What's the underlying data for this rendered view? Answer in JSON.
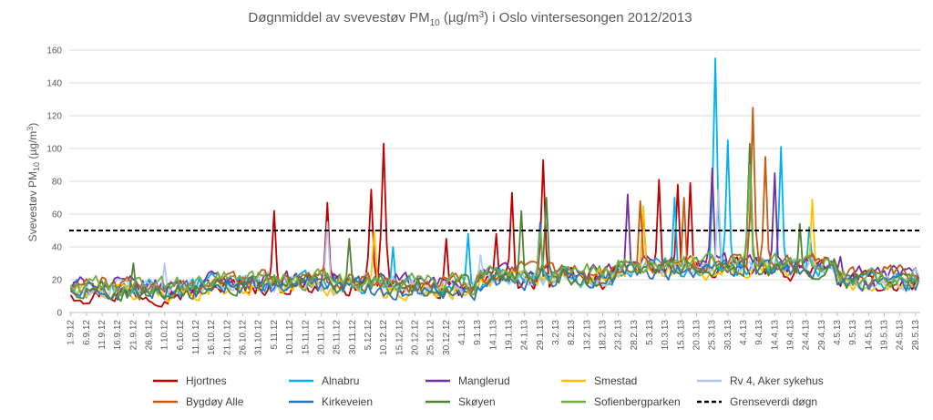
{
  "chart_data": {
    "type": "line",
    "title": "Døgnmiddel av svevestøv PM10 (µg/m³) i Oslo vintersesongen 2012/2013",
    "title_parts": {
      "pre": "Døgnmiddel av svevestøv PM",
      "sub": "10",
      "mid": " (µg/m",
      "sup": "3",
      "post": ") i Oslo vintersesongen 2012/2013"
    },
    "ylabel": "Svevestøv PM10 (µg/m³)",
    "ylabel_parts": {
      "pre": "Svevestøv PM",
      "sub": "10",
      "mid": " (µg/m",
      "sup": "3",
      "post": ")"
    },
    "ylim": [
      0,
      160
    ],
    "yticks": [
      0,
      20,
      40,
      60,
      80,
      100,
      120,
      140,
      160
    ],
    "grid": true,
    "days": 272,
    "x_tick_labels": [
      "1.9.12",
      "6.9.12",
      "11.9.12",
      "16.9.12",
      "21.9.12",
      "26.9.12",
      "1.10.12",
      "6.10.12",
      "11.10.12",
      "16.10.12",
      "21.10.12",
      "26.10.12",
      "31.10.12",
      "5.11.12",
      "10.11.12",
      "15.11.12",
      "20.11.12",
      "25.11.12",
      "30.11.12",
      "5.12.12",
      "10.12.12",
      "15.12.12",
      "20.12.12",
      "25.12.12",
      "30.12.12",
      "4.1.13",
      "9.1.13",
      "14.1.13",
      "19.1.13",
      "24.1.13",
      "29.1.13",
      "3.2.13",
      "8.2.13",
      "13.2.13",
      "18.2.13",
      "23.2.13",
      "28.2.13",
      "5.3.13",
      "10.3.13",
      "15.3.13",
      "20.3.13",
      "25.3.13",
      "30.3.13",
      "4.4.13",
      "9.4.13",
      "14.4.13",
      "19.4.13",
      "24.4.13",
      "29.4.13",
      "4.5.13",
      "9.5.13",
      "14.5.13",
      "19.5.13",
      "24.5.13",
      "29.5.13"
    ],
    "limit_line": {
      "name": "Grenseverdi døgn",
      "value": 50,
      "color": "#000000"
    },
    "series": [
      {
        "name": "Hjortnes",
        "color": "#C00000",
        "peaks": [
          [
            65,
            62
          ],
          [
            82,
            67
          ],
          [
            96,
            75
          ],
          [
            100,
            103
          ],
          [
            120,
            45
          ],
          [
            136,
            48
          ],
          [
            141,
            73
          ],
          [
            151,
            93
          ],
          [
            183,
            62
          ],
          [
            188,
            81
          ],
          [
            194,
            78
          ],
          [
            198,
            79
          ]
        ]
      },
      {
        "name": "Alnabru",
        "color": "#00B0F0",
        "peaks": [
          [
            103,
            40
          ],
          [
            127,
            48
          ],
          [
            193,
            70
          ],
          [
            206,
            155
          ],
          [
            210,
            105
          ],
          [
            227,
            101
          ],
          [
            236,
            52
          ]
        ]
      },
      {
        "name": "Manglerud",
        "color": "#7030A0",
        "peaks": [
          [
            178,
            72
          ],
          [
            205,
            88
          ],
          [
            225,
            85
          ],
          [
            246,
            34
          ]
        ]
      },
      {
        "name": "Smestad",
        "color": "#FFC000",
        "peaks": [
          [
            97,
            50
          ],
          [
            183,
            65
          ],
          [
            237,
            69
          ]
        ]
      },
      {
        "name": "Rv 4, Aker sykehus",
        "color": "#B4C7E7",
        "peaks": [
          [
            30,
            30
          ],
          [
            82,
            55
          ],
          [
            131,
            35
          ],
          [
            207,
            75
          ]
        ]
      },
      {
        "name": "Bygdøy Alle",
        "color": "#C55A11",
        "peaks": [
          [
            182,
            68
          ],
          [
            196,
            70
          ],
          [
            218,
            125
          ],
          [
            222,
            95
          ]
        ]
      },
      {
        "name": "Kirkeveien",
        "color": "#2E75B6",
        "peaks": [
          [
            150,
            55
          ],
          [
            217,
            100
          ]
        ]
      },
      {
        "name": "Skøyen",
        "color": "#548235",
        "peaks": [
          [
            20,
            30
          ],
          [
            89,
            45
          ],
          [
            144,
            62
          ],
          [
            152,
            70
          ],
          [
            217,
            103
          ],
          [
            233,
            54
          ]
        ]
      },
      {
        "name": "Sofienbergparken",
        "color": "#70AD47",
        "peaks": [
          [
            150,
            50
          ],
          [
            217,
            90
          ]
        ]
      }
    ]
  }
}
